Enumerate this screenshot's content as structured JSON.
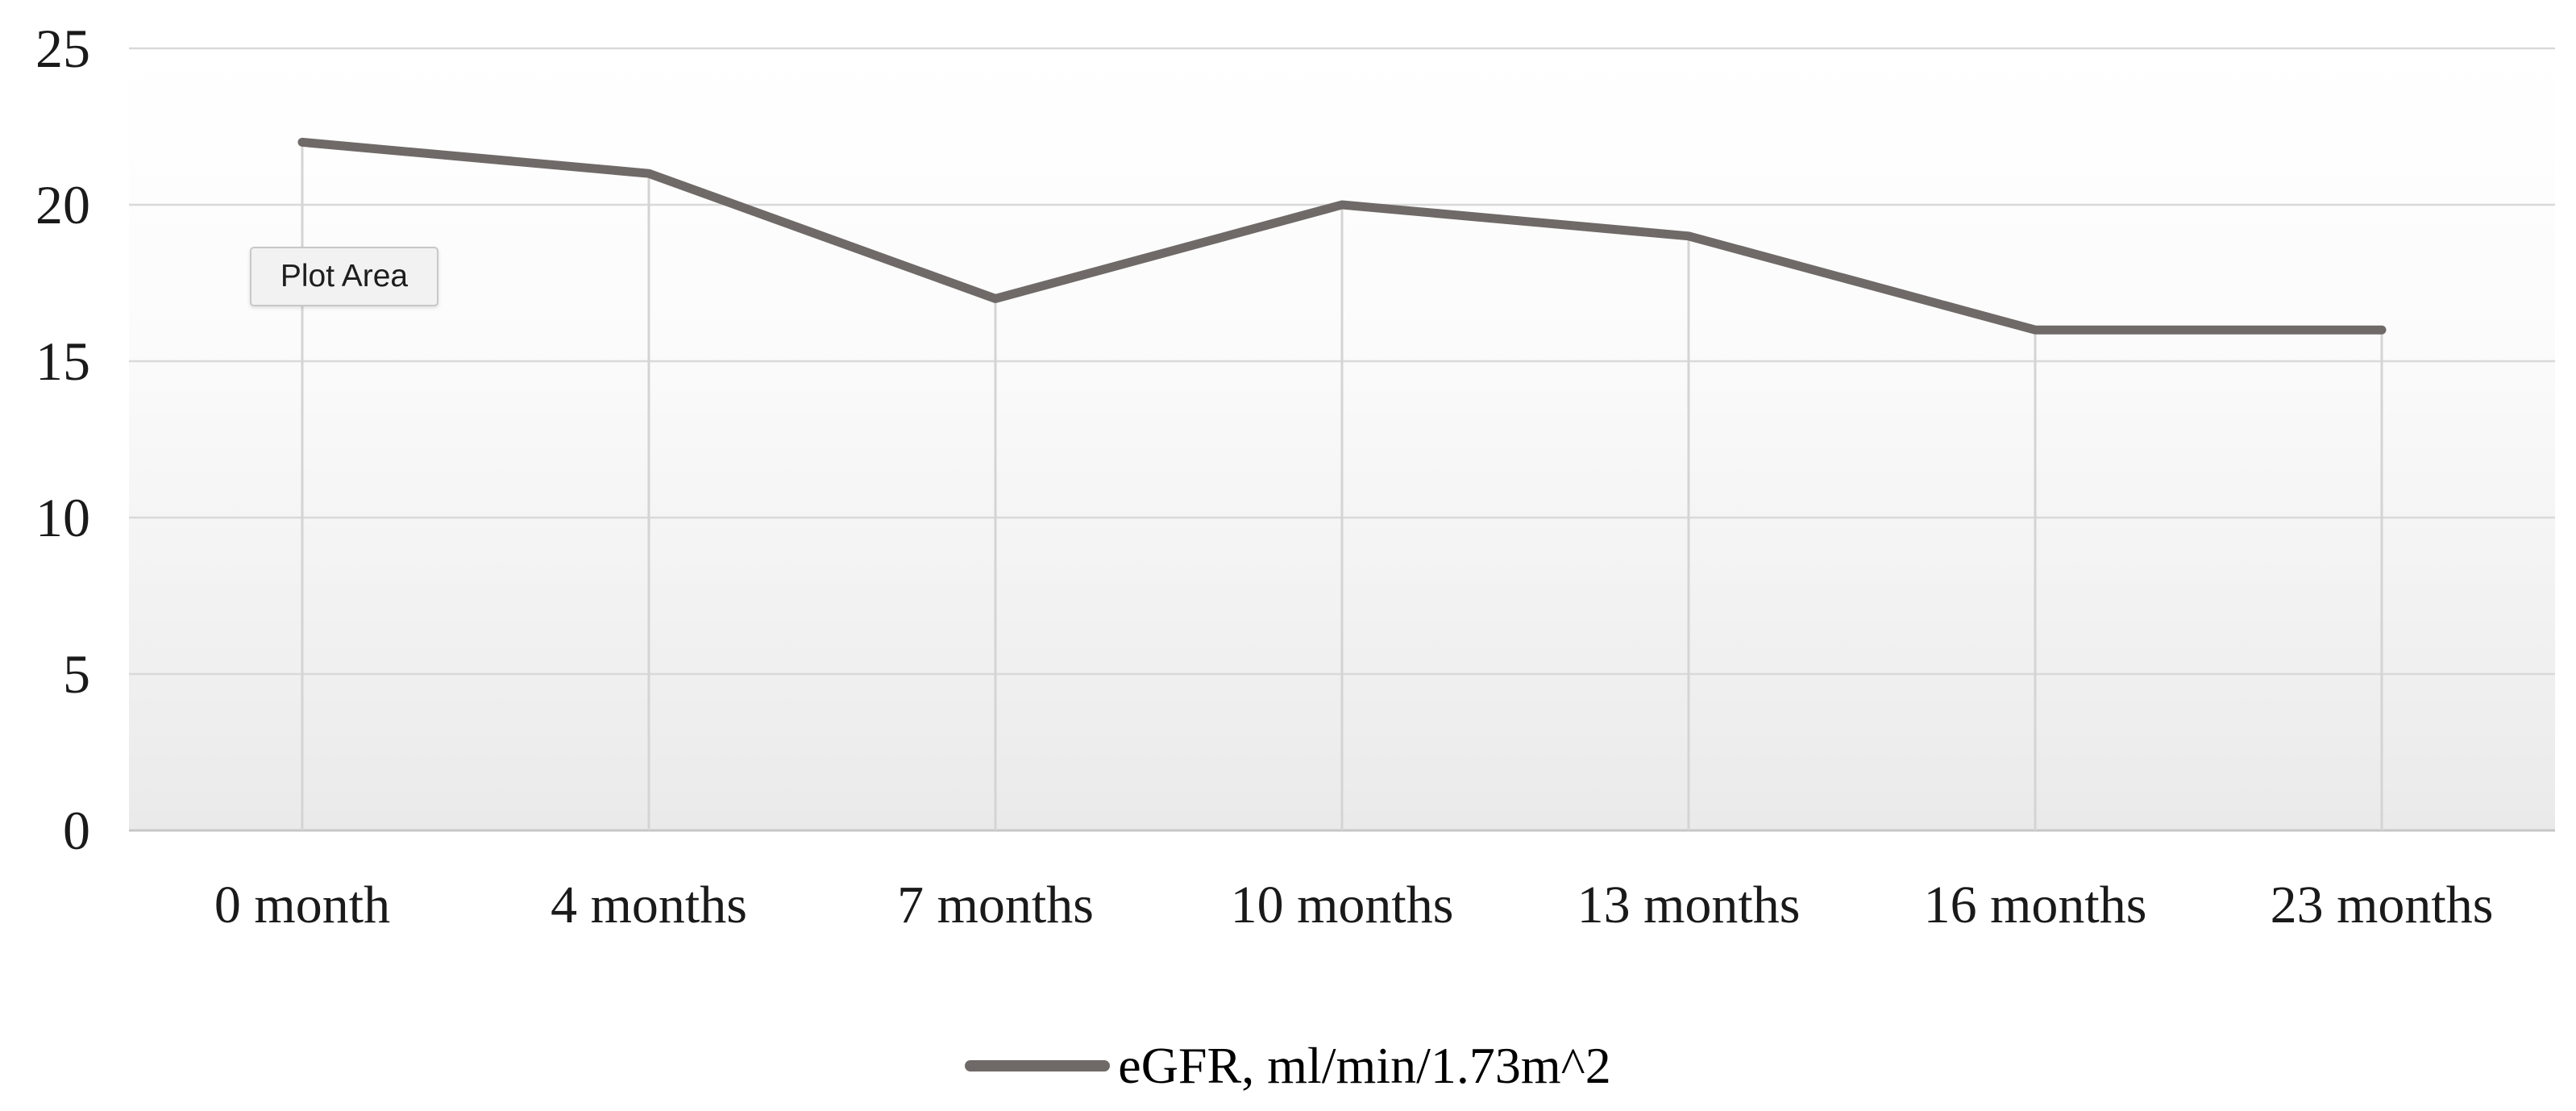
{
  "chart_data": {
    "type": "line",
    "categories": [
      "0 month",
      "4 months",
      "7 months",
      "10 months",
      "13 months",
      "16 months",
      "23 months"
    ],
    "series": [
      {
        "name": "eGFR, ml/min/1.73m^2",
        "values": [
          22,
          21,
          17,
          20,
          19,
          16,
          16
        ]
      }
    ],
    "title": "",
    "xlabel": "",
    "ylabel": "",
    "ylim": [
      0,
      25
    ],
    "yticks": [
      0,
      5,
      10,
      15,
      20,
      25
    ],
    "grid": "horizontal-major",
    "drop_lines": true,
    "legend_position": "bottom-center"
  },
  "tooltip": {
    "label": "Plot Area"
  },
  "colors": {
    "line": "#6f6a68",
    "gridline": "#d9d9d9",
    "axis_line": "#c7c7c7",
    "drop_line": "#d4d4d4",
    "plot_gradient_top": "#ffffff",
    "plot_gradient_mid": "#fbfbfb",
    "plot_gradient_bottom": "#eaeaea",
    "tooltip_bg": "#f3f2f2",
    "tooltip_border": "#c8c8c8",
    "label_color": "#1a1a1a"
  }
}
